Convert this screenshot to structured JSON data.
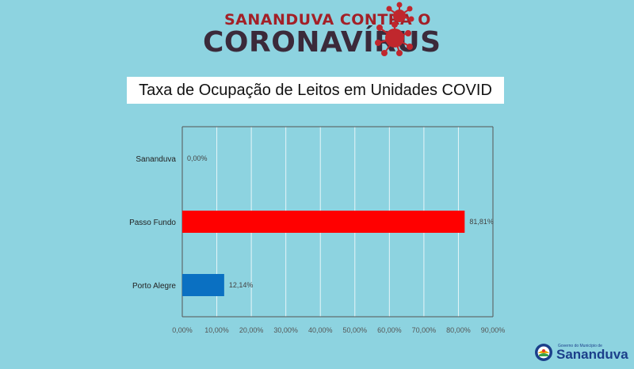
{
  "header": {
    "line1": "SANANDUVA CONTRA O",
    "line2": "CORONAVÍRUS"
  },
  "title": "Taxa de Ocupação de Leitos em Unidades COVID",
  "logo": {
    "small_text": "Governo do Município de",
    "name": "Sananduva"
  },
  "colors": {
    "background": "#8dd3e0",
    "header_red": "#a32027",
    "header_dark": "#3b2a3a",
    "bar_red": "#ff0000",
    "bar_blue": "#0a70c2"
  },
  "chart_data": {
    "type": "bar",
    "orientation": "horizontal",
    "categories": [
      "Sananduva",
      "Passo Fundo",
      "Porto Alegre"
    ],
    "values": [
      0.0,
      81.81,
      12.14
    ],
    "value_labels": [
      "0,00%",
      "81,81%",
      "12,14%"
    ],
    "bar_colors": [
      "#0a70c2",
      "#ff0000",
      "#0a70c2"
    ],
    "xlim": [
      0,
      90
    ],
    "xticks": [
      0,
      10,
      20,
      30,
      40,
      50,
      60,
      70,
      80,
      90
    ],
    "xtick_labels": [
      "0,00%",
      "10,00%",
      "20,00%",
      "30,00%",
      "40,00%",
      "50,00%",
      "60,00%",
      "70,00%",
      "80,00%",
      "90,00%"
    ],
    "grid": true
  }
}
